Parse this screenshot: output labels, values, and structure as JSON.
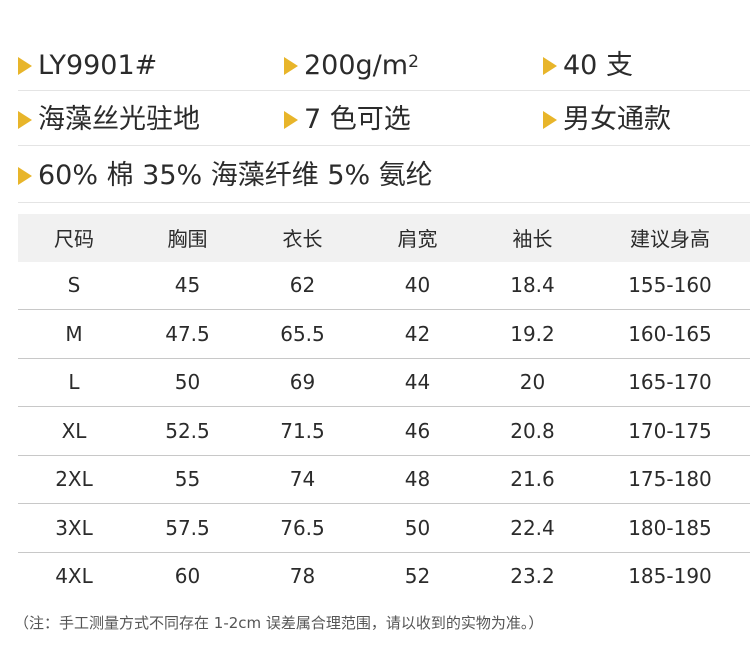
{
  "specs": {
    "row1": [
      {
        "text": "LY9901#"
      },
      {
        "text": "200g/m",
        "sup": "2"
      },
      {
        "text": "40 支"
      }
    ],
    "row2": [
      {
        "text": "海藻丝光驻地"
      },
      {
        "text": "7 色可选"
      },
      {
        "text": "男女通款"
      }
    ],
    "row3": [
      {
        "text": "60% 棉 35% 海藻纤维 5% 氨纶"
      }
    ]
  },
  "colors": {
    "bullet": "#e8b52a",
    "header_bg": "#f1f1f1",
    "divider": "#c8c8c8"
  },
  "table": {
    "headers": [
      "尺码",
      "胸围",
      "衣长",
      "肩宽",
      "袖长",
      "建议身高"
    ],
    "rows": [
      [
        "S",
        "45",
        "62",
        "40",
        "18.4",
        "155-160"
      ],
      [
        "M",
        "47.5",
        "65.5",
        "42",
        "19.2",
        "160-165"
      ],
      [
        "L",
        "50",
        "69",
        "44",
        "20",
        "165-170"
      ],
      [
        "XL",
        "52.5",
        "71.5",
        "46",
        "20.8",
        "170-175"
      ],
      [
        "2XL",
        "55",
        "74",
        "48",
        "21.6",
        "175-180"
      ],
      [
        "3XL",
        "57.5",
        "76.5",
        "50",
        "22.4",
        "180-185"
      ],
      [
        "4XL",
        "60",
        "78",
        "52",
        "23.2",
        "185-190"
      ]
    ]
  },
  "note": "（注：手工测量方式不同存在 1-2cm 误差属合理范围，请以收到的实物为准。）"
}
